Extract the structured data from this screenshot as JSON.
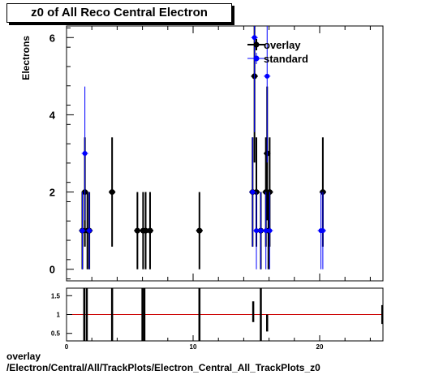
{
  "title": "z0 of All Reco Central  Electron",
  "footer": {
    "line1": "overlay",
    "line2": "/Electron/Central/All/TrackPlots/Electron_Central_All_TrackPlots_z0"
  },
  "colors": {
    "overlay": "#000000",
    "standard": "#0000ff",
    "ratio_line": "#cc0000"
  },
  "chart_data": [
    {
      "type": "scatter",
      "ylabel": "Electrons",
      "xlim": [
        0,
        25
      ],
      "ylim": [
        -0.3,
        6.3
      ],
      "yticks": [
        0,
        2,
        4,
        6
      ],
      "legend_position": "top-right",
      "series": [
        {
          "name": "overlay",
          "points": [
            {
              "x": 1.25,
              "y": 1
            },
            {
              "x": 1.45,
              "y": 2
            },
            {
              "x": 1.65,
              "y": 1
            },
            {
              "x": 1.8,
              "y": 1
            },
            {
              "x": 3.6,
              "y": 2
            },
            {
              "x": 5.6,
              "y": 1
            },
            {
              "x": 6.05,
              "y": 1
            },
            {
              "x": 6.25,
              "y": 1
            },
            {
              "x": 6.6,
              "y": 1
            },
            {
              "x": 10.5,
              "y": 1
            },
            {
              "x": 14.7,
              "y": 2
            },
            {
              "x": 14.85,
              "y": 5
            },
            {
              "x": 15.0,
              "y": 2
            },
            {
              "x": 15.35,
              "y": 1
            },
            {
              "x": 15.75,
              "y": 2
            },
            {
              "x": 15.85,
              "y": 3
            },
            {
              "x": 15.95,
              "y": 1
            },
            {
              "x": 16.05,
              "y": 2
            },
            {
              "x": 20.25,
              "y": 2
            }
          ]
        },
        {
          "name": "standard",
          "points": [
            {
              "x": 1.25,
              "y": 1
            },
            {
              "x": 1.45,
              "y": 3
            },
            {
              "x": 1.8,
              "y": 1
            },
            {
              "x": 14.7,
              "y": 2
            },
            {
              "x": 14.85,
              "y": 6
            },
            {
              "x": 15.0,
              "y": 1
            },
            {
              "x": 15.35,
              "y": 1
            },
            {
              "x": 15.75,
              "y": 1
            },
            {
              "x": 15.85,
              "y": 5
            },
            {
              "x": 16.05,
              "y": 1
            },
            {
              "x": 20.1,
              "y": 1
            },
            {
              "x": 20.25,
              "y": 1
            }
          ]
        }
      ]
    },
    {
      "type": "bar",
      "xlim": [
        0,
        25
      ],
      "xticks": [
        0,
        10,
        20
      ],
      "ylim": [
        0.3,
        1.7
      ],
      "yticks": [
        0.5,
        1,
        1.5
      ],
      "reference_line": 1,
      "bars": [
        {
          "x": 1.4,
          "lo": 0.3,
          "hi": 1.7
        },
        {
          "x": 1.6,
          "lo": 0.3,
          "hi": 1.7
        },
        {
          "x": 3.6,
          "lo": 0.3,
          "hi": 1.7
        },
        {
          "x": 6.0,
          "lo": 0.3,
          "hi": 1.7
        },
        {
          "x": 6.15,
          "lo": 0.3,
          "hi": 1.7
        },
        {
          "x": 10.5,
          "lo": 0.3,
          "hi": 1.7
        },
        {
          "x": 14.75,
          "lo": 0.8,
          "hi": 1.35
        },
        {
          "x": 15.35,
          "lo": 0.3,
          "hi": 1.7
        },
        {
          "x": 15.85,
          "lo": 0.55,
          "hi": 1.0
        },
        {
          "x": 24.95,
          "lo": 0.75,
          "hi": 1.25
        }
      ]
    }
  ]
}
